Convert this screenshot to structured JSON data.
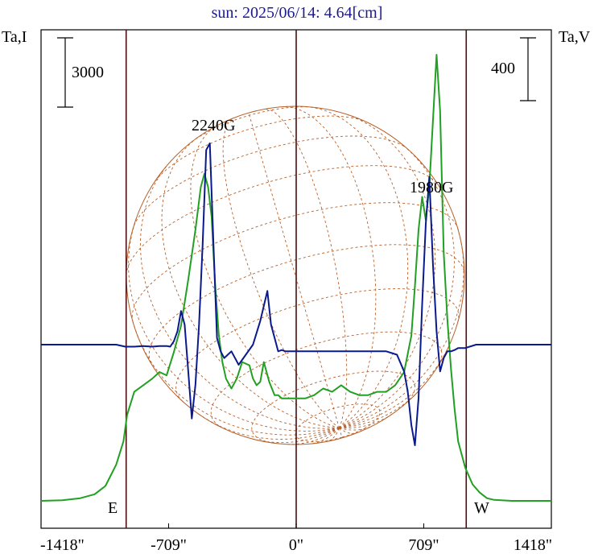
{
  "chart_data": {
    "type": "line",
    "title": "sun: 2025/06/14: 4.64[cm]",
    "left_axis_label": "Ta,I",
    "right_axis_label": "Ta,V",
    "scale_bar_left_label": "3000",
    "scale_bar_right_label": "400",
    "x_ticks": [
      "-1418\"",
      "-709\"",
      "0\"",
      "709\"",
      "1418\""
    ],
    "x_tick_values": [
      -1418,
      -709,
      0,
      709,
      1418
    ],
    "xlim": [
      -1418,
      1418
    ],
    "limb_lines": [
      -945,
      0,
      945
    ],
    "east_label": "E",
    "west_label": "W",
    "annotations": [
      {
        "text": "2240G",
        "x": -440,
        "series": "Ta,V"
      },
      {
        "text": "1980G",
        "x": 760,
        "series": "Ta,V"
      }
    ],
    "grid": false,
    "series": [
      {
        "name": "Ta,I",
        "color": "#22a022",
        "ylim_approx": [
          -300,
          10500
        ],
        "x": [
          -1418,
          -1300,
          -1200,
          -1120,
          -1060,
          -1000,
          -960,
          -940,
          -900,
          -850,
          -800,
          -760,
          -720,
          -680,
          -640,
          -600,
          -560,
          -530,
          -510,
          -490,
          -470,
          -450,
          -430,
          -410,
          -390,
          -360,
          -330,
          -300,
          -260,
          -240,
          -220,
          -200,
          -180,
          -150,
          -120,
          -100,
          -80,
          -50,
          0,
          50,
          100,
          150,
          200,
          250,
          300,
          350,
          400,
          450,
          500,
          550,
          600,
          640,
          660,
          680,
          700,
          720,
          740,
          760,
          780,
          800,
          820,
          840,
          860,
          880,
          900,
          940,
          980,
          1020,
          1060,
          1100,
          1200,
          1300,
          1418
        ],
        "y": [
          0,
          20,
          80,
          200,
          450,
          1100,
          1800,
          2600,
          3300,
          3500,
          3700,
          3900,
          3800,
          4500,
          5300,
          6700,
          8200,
          9500,
          9900,
          9500,
          8600,
          6500,
          5000,
          4200,
          3700,
          3400,
          3700,
          4200,
          4100,
          3700,
          3500,
          3600,
          4200,
          3600,
          3200,
          3200,
          3100,
          3100,
          3100,
          3100,
          3200,
          3400,
          3300,
          3500,
          3300,
          3200,
          3200,
          3300,
          3300,
          3500,
          3900,
          5000,
          6500,
          8200,
          9200,
          8500,
          9500,
          11500,
          13500,
          11800,
          7500,
          5500,
          4000,
          2800,
          1800,
          1000,
          500,
          250,
          80,
          30,
          0,
          0,
          0
        ]
      },
      {
        "name": "Ta,V",
        "color": "#0a1a8c",
        "ylim_approx": [
          -1500,
          1800
        ],
        "x": [
          -1418,
          -1300,
          -1200,
          -1100,
          -1000,
          -950,
          -900,
          -850,
          -800,
          -760,
          -720,
          -700,
          -680,
          -660,
          -640,
          -620,
          -600,
          -580,
          -560,
          -540,
          -520,
          -500,
          -480,
          -460,
          -440,
          -420,
          -400,
          -380,
          -360,
          -320,
          -280,
          -240,
          -200,
          -160,
          -140,
          -120,
          -100,
          -80,
          -60,
          -40,
          0,
          100,
          200,
          300,
          400,
          500,
          560,
          600,
          620,
          640,
          660,
          680,
          700,
          720,
          740,
          760,
          780,
          800,
          820,
          840,
          860,
          880,
          900,
          940,
          1000,
          1100,
          1200,
          1300,
          1418
        ],
        "y": [
          0,
          0,
          0,
          0,
          0,
          -30,
          -30,
          -20,
          -30,
          -20,
          -20,
          -30,
          50,
          200,
          500,
          300,
          -400,
          -1100,
          -600,
          300,
          1500,
          2900,
          3000,
          1500,
          100,
          -100,
          -200,
          -150,
          -100,
          -300,
          -150,
          0,
          350,
          800,
          300,
          100,
          -100,
          -80,
          -100,
          -100,
          -100,
          -100,
          -100,
          -100,
          -100,
          -100,
          -150,
          -400,
          -700,
          -1200,
          -1500,
          -800,
          600,
          1800,
          2500,
          1200,
          200,
          -400,
          -200,
          -100,
          -100,
          -80,
          -50,
          -50,
          0,
          0,
          0,
          0,
          0
        ]
      }
    ]
  }
}
